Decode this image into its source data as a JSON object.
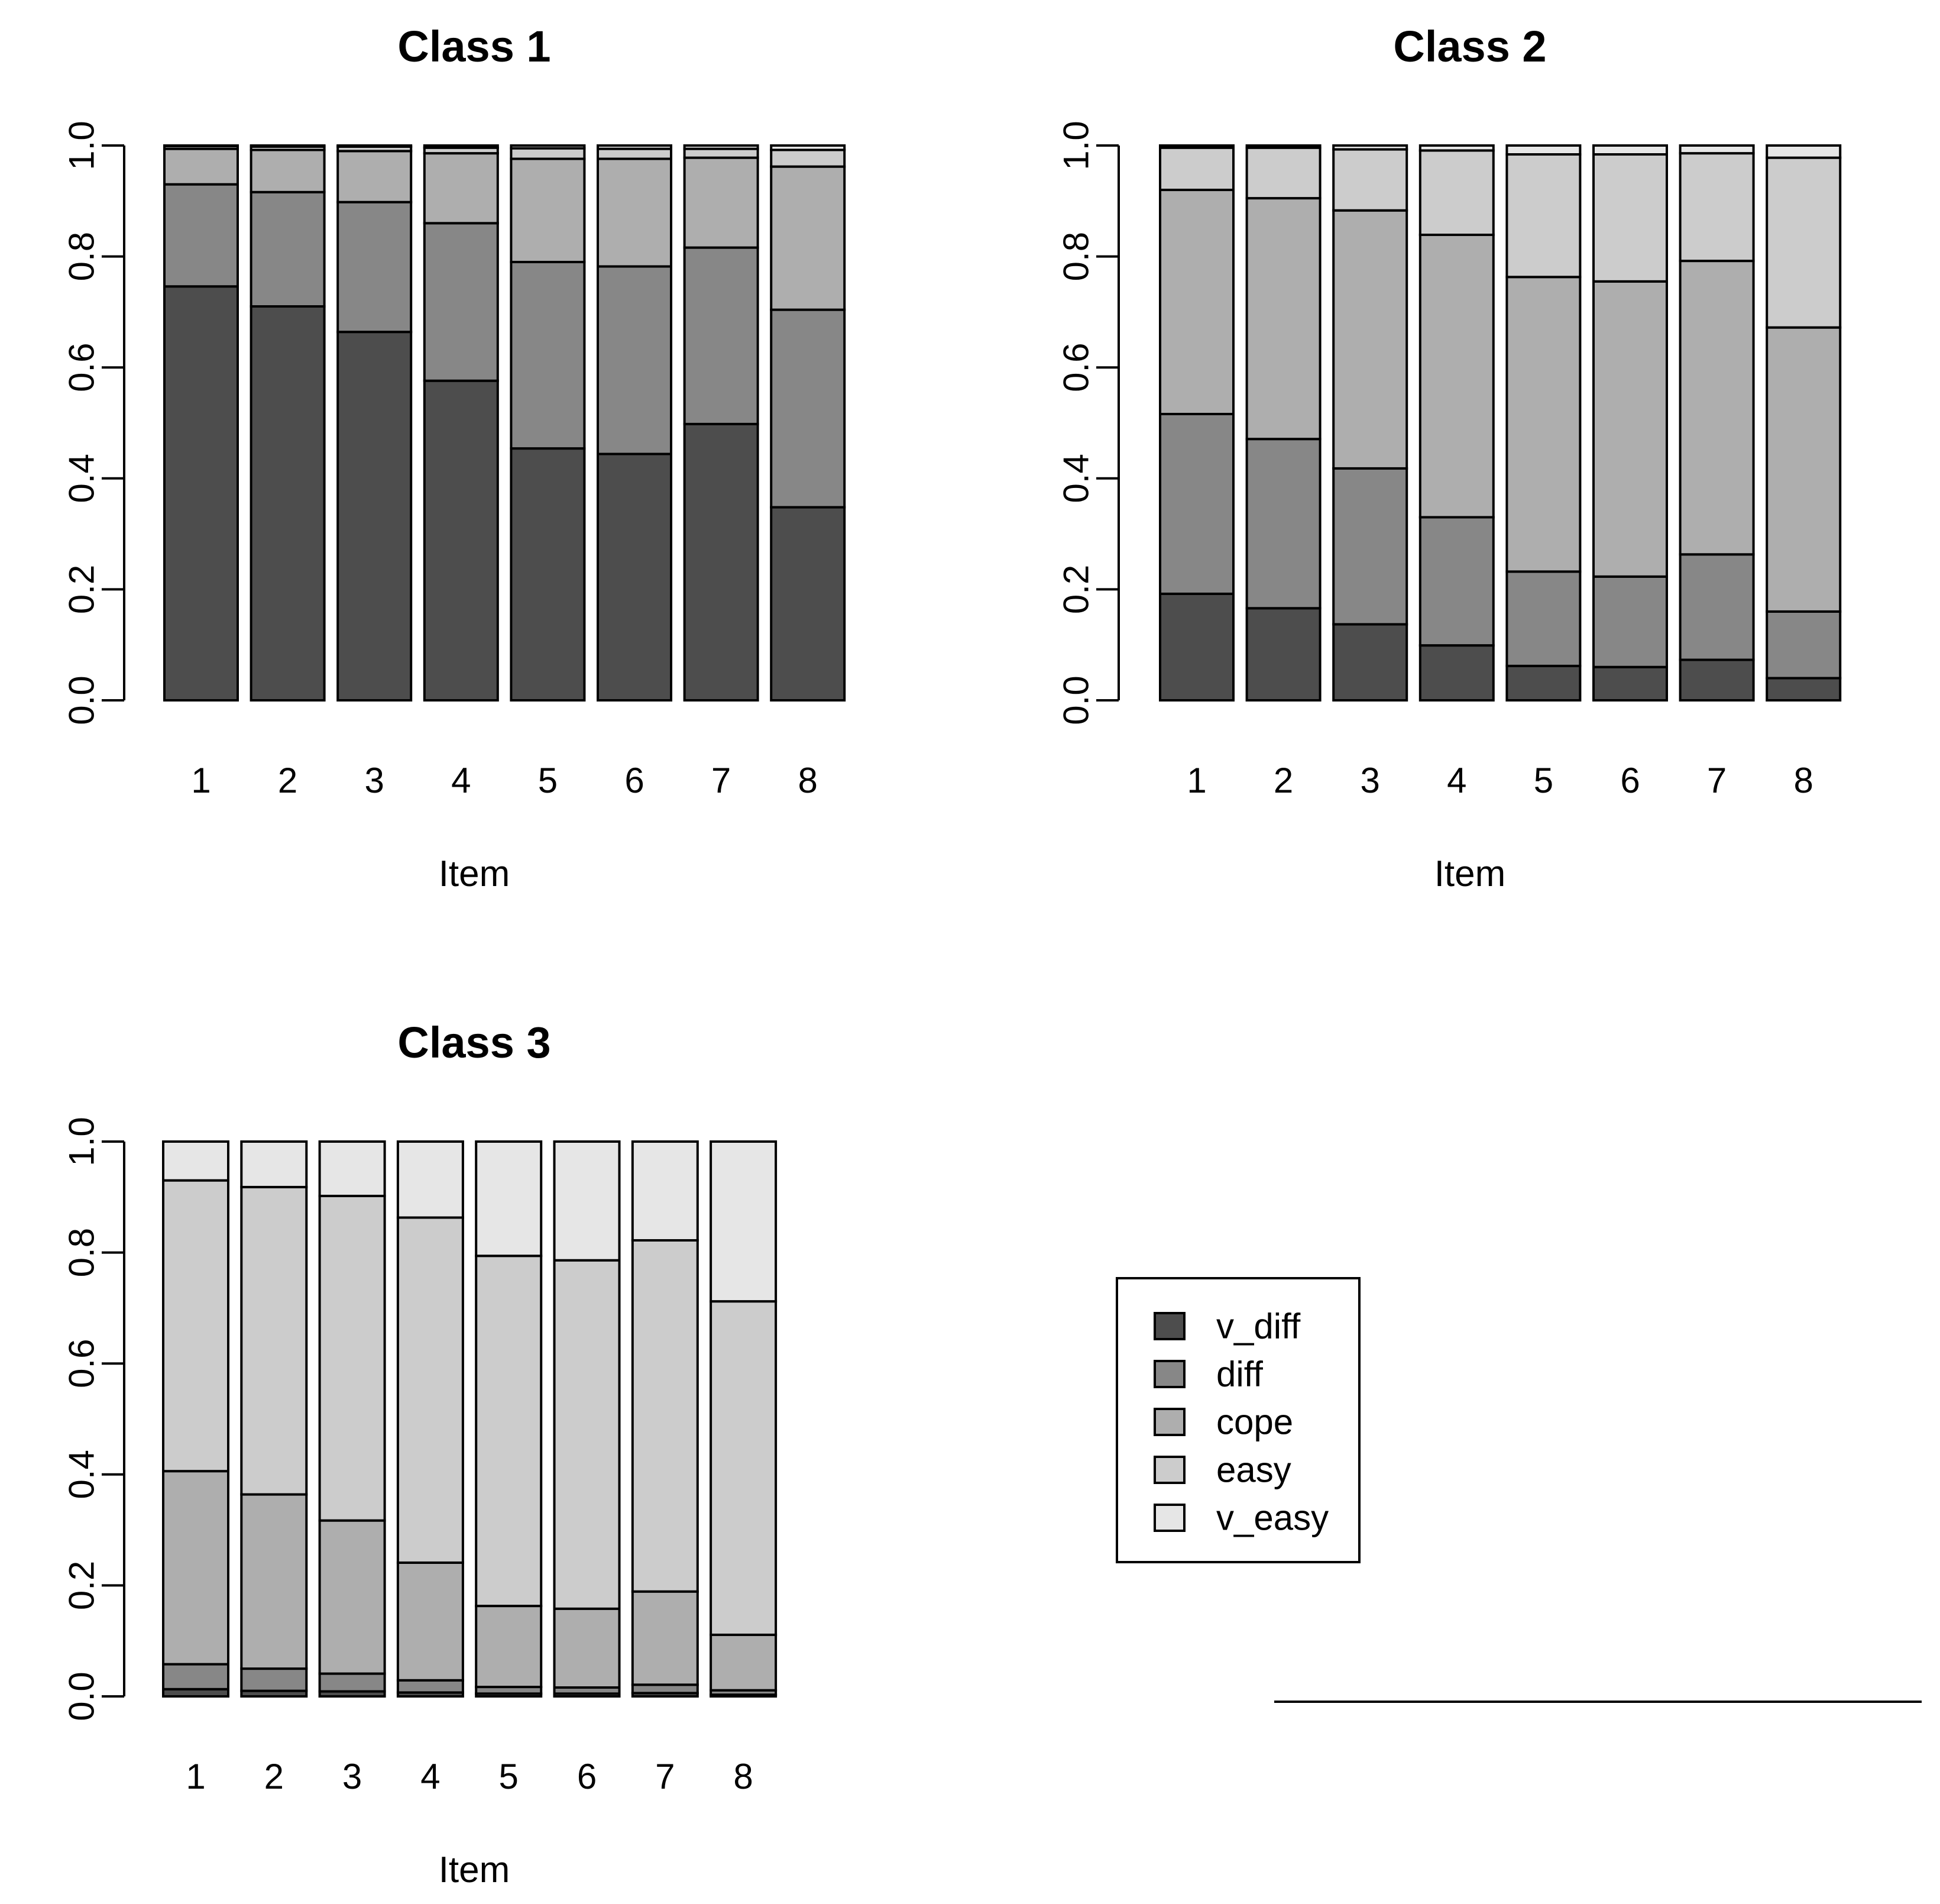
{
  "chart_data": [
    {
      "type": "bar",
      "stacked": true,
      "title": "Class 1",
      "xlabel": "Item",
      "ylabel": "",
      "ylim": [
        0,
        1
      ],
      "yticks": [
        "0.0",
        "0.2",
        "0.4",
        "0.6",
        "0.8",
        "1.0"
      ],
      "categories": [
        "1",
        "2",
        "3",
        "4",
        "5",
        "6",
        "7",
        "8"
      ],
      "series": [
        {
          "name": "v_diff",
          "values": [
            0.746,
            0.71,
            0.664,
            0.576,
            0.454,
            0.444,
            0.498,
            0.348
          ]
        },
        {
          "name": "diff",
          "values": [
            0.184,
            0.206,
            0.234,
            0.284,
            0.336,
            0.338,
            0.318,
            0.356
          ]
        },
        {
          "name": "cope",
          "values": [
            0.064,
            0.076,
            0.092,
            0.126,
            0.186,
            0.194,
            0.162,
            0.258
          ]
        },
        {
          "name": "easy",
          "values": [
            0.005,
            0.006,
            0.008,
            0.01,
            0.019,
            0.018,
            0.016,
            0.03
          ]
        },
        {
          "name": "v_easy",
          "values": [
            0.001,
            0.002,
            0.002,
            0.004,
            0.005,
            0.006,
            0.006,
            0.008
          ]
        }
      ]
    },
    {
      "type": "bar",
      "stacked": true,
      "title": "Class 2",
      "xlabel": "Item",
      "ylabel": "",
      "ylim": [
        0,
        1
      ],
      "yticks": [
        "0.0",
        "0.2",
        "0.4",
        "0.6",
        "0.8",
        "1.0"
      ],
      "categories": [
        "1",
        "2",
        "3",
        "4",
        "5",
        "6",
        "7",
        "8"
      ],
      "series": [
        {
          "name": "v_diff",
          "values": [
            0.192,
            0.166,
            0.137,
            0.099,
            0.062,
            0.06,
            0.073,
            0.04
          ]
        },
        {
          "name": "diff",
          "values": [
            0.324,
            0.305,
            0.281,
            0.231,
            0.17,
            0.163,
            0.19,
            0.12
          ]
        },
        {
          "name": "cope",
          "values": [
            0.404,
            0.434,
            0.465,
            0.509,
            0.531,
            0.532,
            0.529,
            0.512
          ]
        },
        {
          "name": "easy",
          "values": [
            0.076,
            0.091,
            0.11,
            0.152,
            0.221,
            0.229,
            0.194,
            0.306
          ]
        },
        {
          "name": "v_easy",
          "values": [
            0.004,
            0.004,
            0.007,
            0.009,
            0.016,
            0.016,
            0.014,
            0.022
          ]
        }
      ]
    },
    {
      "type": "bar",
      "stacked": true,
      "title": "Class 3",
      "xlabel": "Item",
      "ylabel": "",
      "ylim": [
        0,
        1
      ],
      "yticks": [
        "0.0",
        "0.2",
        "0.4",
        "0.6",
        "0.8",
        "1.0"
      ],
      "categories": [
        "1",
        "2",
        "3",
        "4",
        "5",
        "6",
        "7",
        "8"
      ],
      "series": [
        {
          "name": "v_diff",
          "values": [
            0.013,
            0.01,
            0.009,
            0.007,
            0.005,
            0.005,
            0.006,
            0.003
          ]
        },
        {
          "name": "diff",
          "values": [
            0.045,
            0.04,
            0.032,
            0.022,
            0.012,
            0.011,
            0.015,
            0.008
          ]
        },
        {
          "name": "cope",
          "values": [
            0.348,
            0.314,
            0.276,
            0.212,
            0.146,
            0.142,
            0.168,
            0.1
          ]
        },
        {
          "name": "easy",
          "values": [
            0.524,
            0.554,
            0.585,
            0.622,
            0.631,
            0.628,
            0.633,
            0.601
          ]
        },
        {
          "name": "v_easy",
          "values": [
            0.07,
            0.082,
            0.098,
            0.137,
            0.206,
            0.214,
            0.178,
            0.288
          ]
        }
      ]
    }
  ],
  "legend": {
    "entries": [
      "v_diff",
      "diff",
      "cope",
      "easy",
      "v_easy"
    ],
    "position": "bottom-right"
  },
  "colors": {
    "v_diff": "#4d4d4d",
    "diff": "#878787",
    "cope": "#aeaeae",
    "easy": "#cccccc",
    "v_easy": "#e6e6e6"
  }
}
